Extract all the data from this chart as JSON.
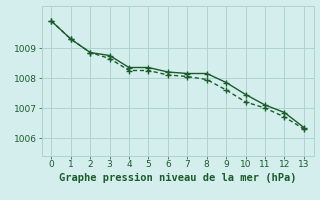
{
  "xlabel": "Graphe pression niveau de la mer (hPa)",
  "background_color": "#d4eeed",
  "grid_color": "#aed4d0",
  "line_color": "#1a5c2a",
  "xlim": [
    -0.5,
    13.5
  ],
  "ylim": [
    1005.4,
    1010.4
  ],
  "yticks": [
    1006,
    1007,
    1008,
    1009
  ],
  "xticks": [
    0,
    1,
    2,
    3,
    4,
    5,
    6,
    7,
    8,
    9,
    10,
    11,
    12,
    13
  ],
  "series1_x": [
    0,
    1,
    2,
    3,
    4,
    5,
    6,
    7,
    8,
    9,
    10,
    11,
    12,
    13
  ],
  "series1_y": [
    1009.9,
    1009.3,
    1008.85,
    1008.75,
    1008.35,
    1008.35,
    1008.2,
    1008.15,
    1008.15,
    1007.85,
    1007.45,
    1007.1,
    1006.85,
    1006.35
  ],
  "series2_x": [
    0,
    1,
    2,
    3,
    4,
    5,
    6,
    7,
    8,
    9,
    10,
    11,
    12,
    13
  ],
  "series2_y": [
    1009.9,
    1009.3,
    1008.85,
    1008.65,
    1008.25,
    1008.25,
    1008.1,
    1008.05,
    1007.95,
    1007.6,
    1007.2,
    1007.0,
    1006.7,
    1006.3
  ],
  "linewidth": 1.0,
  "xlabel_fontsize": 7.5,
  "tick_fontsize": 6.5
}
